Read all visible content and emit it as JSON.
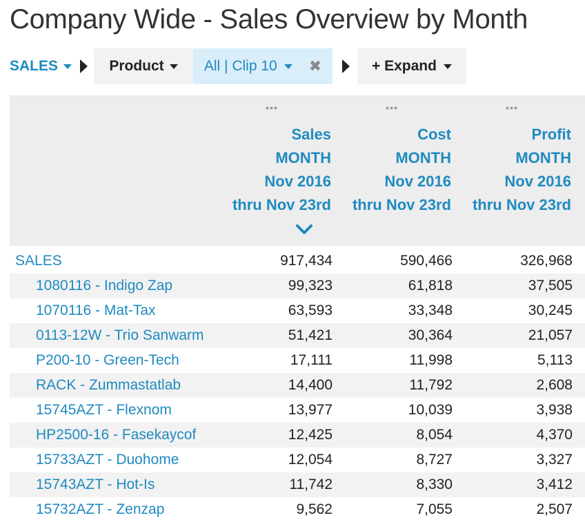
{
  "page": {
    "title": "Company Wide - Sales Overview by Month"
  },
  "breadcrumb": {
    "root_label": "SALES",
    "product_label": "Product",
    "filter_label": "All | Clip 10",
    "filter_clear_glyph": "✖",
    "expand_label": "+ Expand"
  },
  "columns": [
    {
      "lines": [
        "Sales",
        "MONTH",
        "Nov 2016",
        "thru Nov 23rd"
      ],
      "menu": "•••",
      "sorted": "descending"
    },
    {
      "lines": [
        "Cost",
        "MONTH",
        "Nov 2016",
        "thru Nov 23rd"
      ],
      "menu": "•••"
    },
    {
      "lines": [
        "Profit",
        "MONTH",
        "Nov 2016",
        "thru Nov 23rd"
      ],
      "menu": "•••"
    }
  ],
  "rows": [
    {
      "name": "SALES",
      "sales": "917,434",
      "cost": "590,466",
      "profit": "326,968",
      "indent": false
    },
    {
      "name": "1080116 - Indigo Zap",
      "sales": "99,323",
      "cost": "61,818",
      "profit": "37,505",
      "indent": true
    },
    {
      "name": "1070116 - Mat-Tax",
      "sales": "63,593",
      "cost": "33,348",
      "profit": "30,245",
      "indent": true
    },
    {
      "name": "0113-12W - Trio Sanwarm",
      "sales": "51,421",
      "cost": "30,364",
      "profit": "21,057",
      "indent": true
    },
    {
      "name": "P200-10 - Green-Tech",
      "sales": "17,111",
      "cost": "11,998",
      "profit": "5,113",
      "indent": true
    },
    {
      "name": "RACK - Zummastatlab",
      "sales": "14,400",
      "cost": "11,792",
      "profit": "2,608",
      "indent": true
    },
    {
      "name": "15745AZT - Flexnom",
      "sales": "13,977",
      "cost": "10,039",
      "profit": "3,938",
      "indent": true
    },
    {
      "name": "HP2500-16 - Fasekaycof",
      "sales": "12,425",
      "cost": "8,054",
      "profit": "4,370",
      "indent": true
    },
    {
      "name": "15733AZT - Duohome",
      "sales": "12,054",
      "cost": "8,727",
      "profit": "3,327",
      "indent": true
    },
    {
      "name": "15743AZT - Hot-Is",
      "sales": "11,742",
      "cost": "8,330",
      "profit": "3,412",
      "indent": true
    },
    {
      "name": "15732AZT - Zenzap",
      "sales": "9,562",
      "cost": "7,055",
      "profit": "2,507",
      "indent": true
    }
  ],
  "colors": {
    "accent": "#1f8ac0",
    "header_bg": "#ededed",
    "filter_bg": "#d9eef9",
    "row_alt": "#f2f2f2"
  }
}
